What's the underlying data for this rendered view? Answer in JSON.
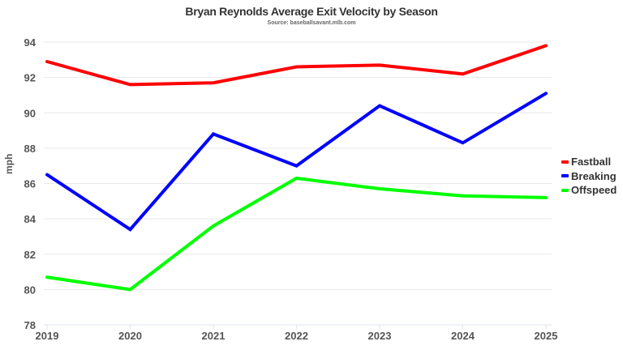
{
  "chart_data": {
    "type": "line",
    "title": "Bryan Reynolds Average Exit Velocity by Season",
    "subtitle": "Source: baseballsavant.mlb.com",
    "xlabel": "",
    "ylabel": "mph",
    "x": [
      "2019",
      "2020",
      "2021",
      "2022",
      "2023",
      "2024",
      "2025"
    ],
    "yticks": [
      "94",
      "92",
      "90",
      "88",
      "86",
      "84",
      "82",
      "80",
      "78"
    ],
    "ylim": [
      78,
      94
    ],
    "grid": true,
    "legend_position": "right",
    "series": [
      {
        "name": "Fastball",
        "color": "#ff0000",
        "values": [
          92.9,
          91.6,
          91.7,
          92.6,
          92.7,
          92.2,
          93.8
        ]
      },
      {
        "name": "Breaking",
        "color": "#0000ff",
        "values": [
          86.5,
          83.4,
          88.8,
          87.0,
          90.4,
          88.3,
          91.1
        ]
      },
      {
        "name": "Offspeed",
        "color": "#00ff00",
        "values": [
          80.7,
          80.0,
          83.6,
          86.3,
          85.7,
          85.3,
          85.2
        ]
      }
    ]
  }
}
